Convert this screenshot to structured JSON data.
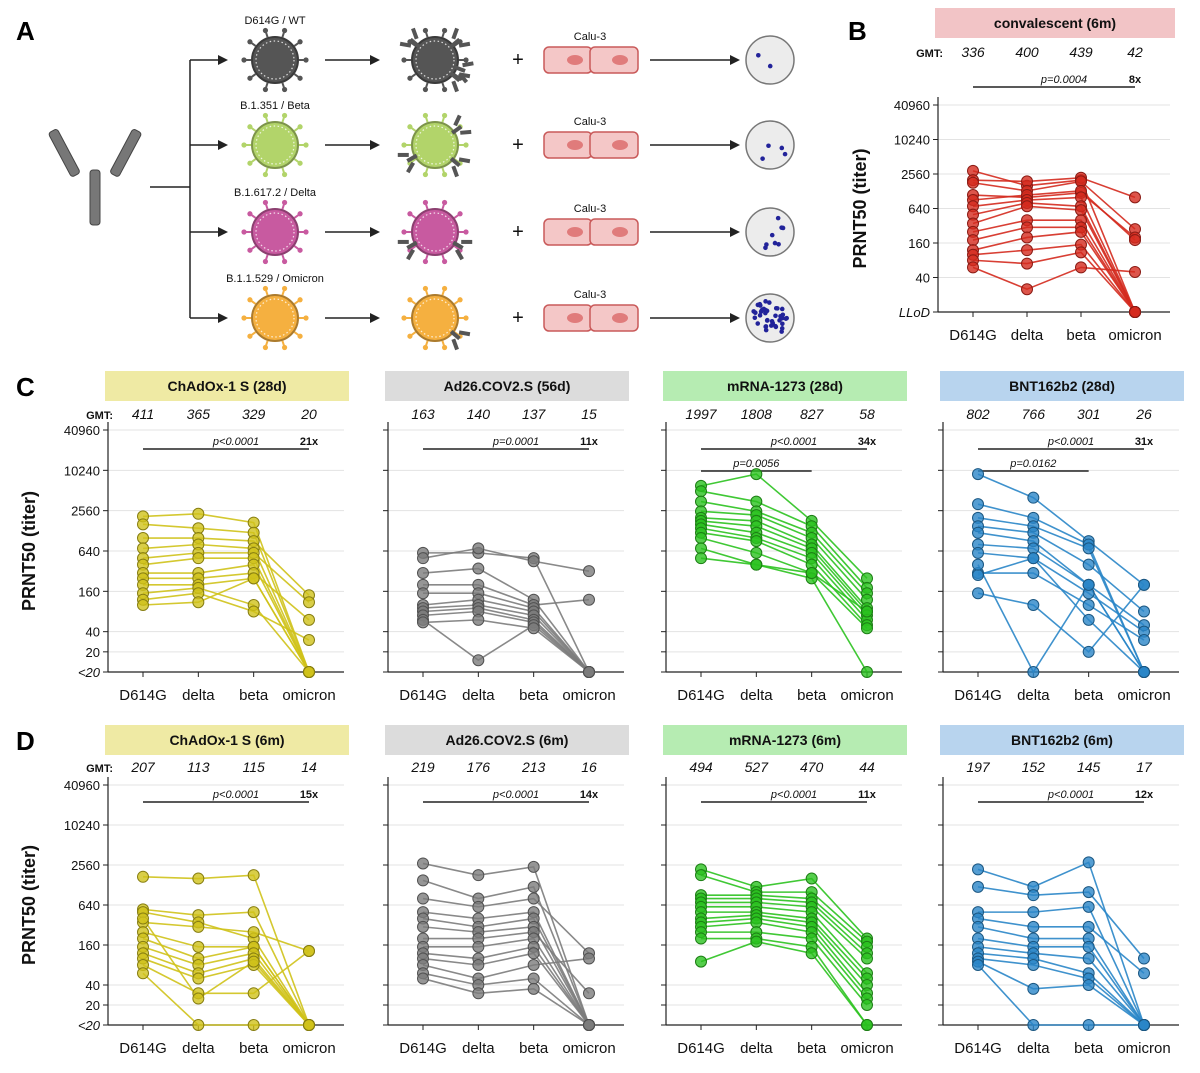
{
  "labels": {
    "A": "A",
    "B": "B",
    "C": "C",
    "D": "D"
  },
  "schematic": {
    "variants": [
      {
        "name": "D614G / WT",
        "color": "#555555",
        "antibodies": 4,
        "dots": 2
      },
      {
        "name": "B.1.351 / Beta",
        "color": "#b2d46a",
        "antibodies": 3,
        "dots": 4
      },
      {
        "name": "B.1.617.2 / Delta",
        "color": "#c85aa0",
        "antibodies": 2,
        "dots": 8
      },
      {
        "name": "B.1.1.529 / Omicron",
        "color": "#f5b040",
        "antibodies": 1,
        "dots": 40
      }
    ],
    "cell_label": "Calu-3",
    "plus": "+"
  },
  "common": {
    "categories": [
      "D614G",
      "delta",
      "beta",
      "omicron"
    ],
    "ylabel": "PRNT50 (titer)",
    "yticks": [
      "40960",
      "10240",
      "2560",
      "640",
      "160",
      "40",
      "20",
      "<20"
    ],
    "yticks_b": [
      "40960",
      "10240",
      "2560",
      "640",
      "160",
      "40",
      "LLoD"
    ],
    "gmt_label": "GMT:"
  },
  "chart_data": [
    {
      "panel": "B",
      "type": "line",
      "title": "convalescent (6m)",
      "title_bg": "#f2c4c6",
      "color": "#d42a1e",
      "gmt": [
        "336",
        "400",
        "439",
        "42"
      ],
      "sig": [
        {
          "from": 0,
          "to": 3,
          "p": "p=0.0004",
          "fold": "8x"
        }
      ],
      "series": [
        [
          2900,
          1600,
          2000,
          10
        ],
        [
          2000,
          1900,
          2200,
          1000
        ],
        [
          1800,
          1300,
          1900,
          280
        ],
        [
          1100,
          1000,
          1200,
          200
        ],
        [
          900,
          1100,
          1300,
          180
        ],
        [
          700,
          900,
          1000,
          10
        ],
        [
          500,
          800,
          700,
          10
        ],
        [
          350,
          700,
          600,
          10
        ],
        [
          250,
          400,
          400,
          10
        ],
        [
          180,
          300,
          300,
          10
        ],
        [
          120,
          200,
          250,
          10
        ],
        [
          100,
          120,
          150,
          10
        ],
        [
          80,
          70,
          110,
          10
        ],
        [
          60,
          25,
          60,
          50
        ]
      ]
    },
    {
      "panel": "C1",
      "type": "line",
      "title": "ChAdOx-1 S (28d)",
      "title_bg": "#efeaa4",
      "color": "#cfc21a",
      "gmt": [
        "411",
        "365",
        "329",
        "20"
      ],
      "sig": [
        {
          "from": 0,
          "to": 3,
          "p": "p<0.0001",
          "fold": "21x"
        }
      ],
      "series": [
        [
          2100,
          2300,
          1700,
          10
        ],
        [
          1600,
          1400,
          1200,
          10
        ],
        [
          1000,
          1000,
          900,
          140
        ],
        [
          700,
          800,
          700,
          10
        ],
        [
          500,
          600,
          600,
          110
        ],
        [
          400,
          500,
          500,
          10
        ],
        [
          300,
          300,
          400,
          10
        ],
        [
          250,
          250,
          300,
          60
        ],
        [
          200,
          200,
          250,
          10
        ],
        [
          150,
          180,
          100,
          10
        ],
        [
          120,
          150,
          80,
          30
        ],
        [
          100,
          110,
          250,
          10
        ]
      ]
    },
    {
      "panel": "C2",
      "type": "line",
      "title": "Ad26.COV2.S (56d)",
      "title_bg": "#dcdcdc",
      "color": "#7c7c7c",
      "gmt": [
        "163",
        "140",
        "137",
        "15"
      ],
      "sig": [
        {
          "from": 0,
          "to": 3,
          "p": "p=0.0001",
          "fold": "11x"
        }
      ],
      "series": [
        [
          600,
          600,
          500,
          10
        ],
        [
          500,
          700,
          450,
          320
        ],
        [
          300,
          350,
          120,
          10
        ],
        [
          200,
          200,
          100,
          120
        ],
        [
          150,
          150,
          90,
          10
        ],
        [
          100,
          120,
          80,
          10
        ],
        [
          90,
          100,
          70,
          10
        ],
        [
          80,
          90,
          60,
          10
        ],
        [
          70,
          80,
          55,
          10
        ],
        [
          60,
          15,
          50,
          10
        ],
        [
          55,
          60,
          45,
          10
        ]
      ]
    },
    {
      "panel": "C3",
      "type": "line",
      "title": "mRNA-1273 (28d)",
      "title_bg": "#b6ecb2",
      "color": "#2bc21f",
      "gmt": [
        "1997",
        "1808",
        "827",
        "58"
      ],
      "sig": [
        {
          "from": 0,
          "to": 3,
          "p": "p<0.0001",
          "fold": "34x"
        },
        {
          "from": 0,
          "to": 2,
          "p": "p=0.0056",
          "fold": ""
        }
      ],
      "series": [
        [
          6000,
          9000,
          1800,
          250
        ],
        [
          5000,
          3500,
          1500,
          180
        ],
        [
          3500,
          2500,
          1200,
          150
        ],
        [
          2500,
          2200,
          1000,
          120
        ],
        [
          2000,
          1800,
          800,
          90
        ],
        [
          1800,
          1500,
          700,
          80
        ],
        [
          1600,
          1200,
          600,
          70
        ],
        [
          1400,
          1000,
          500,
          60
        ],
        [
          1200,
          900,
          400,
          50
        ],
        [
          1000,
          600,
          300,
          45
        ],
        [
          700,
          400,
          250,
          10
        ],
        [
          500,
          400,
          300,
          80
        ]
      ]
    },
    {
      "panel": "C4",
      "type": "line",
      "title": "BNT162b2 (28d)",
      "title_bg": "#b8d4ee",
      "color": "#2a86c8",
      "gmt": [
        "802",
        "766",
        "301",
        "26"
      ],
      "sig": [
        {
          "from": 0,
          "to": 3,
          "p": "p<0.0001",
          "fold": "31x"
        },
        {
          "from": 0,
          "to": 2,
          "p": "p=0.0162",
          "fold": ""
        }
      ],
      "series": [
        [
          9000,
          4000,
          900,
          200
        ],
        [
          3200,
          2000,
          800,
          10
        ],
        [
          2000,
          1500,
          700,
          10
        ],
        [
          1500,
          1200,
          400,
          80
        ],
        [
          1200,
          900,
          200,
          50
        ],
        [
          800,
          700,
          200,
          10
        ],
        [
          600,
          500,
          150,
          40
        ],
        [
          300,
          300,
          100,
          30
        ],
        [
          280,
          500,
          60,
          10
        ],
        [
          150,
          100,
          20,
          200
        ],
        [
          400,
          10,
          200,
          10
        ]
      ]
    },
    {
      "panel": "D1",
      "type": "line",
      "title": "ChAdOx-1 S (6m)",
      "title_bg": "#efeaa4",
      "color": "#cfc21a",
      "gmt": [
        "207",
        "113",
        "115",
        "14"
      ],
      "sig": [
        {
          "from": 0,
          "to": 3,
          "p": "p<0.0001",
          "fold": "15x"
        }
      ],
      "series": [
        [
          1700,
          1600,
          1800,
          10
        ],
        [
          550,
          450,
          500,
          10
        ],
        [
          500,
          350,
          200,
          10
        ],
        [
          350,
          300,
          250,
          130
        ],
        [
          250,
          150,
          150,
          10
        ],
        [
          200,
          100,
          150,
          10
        ],
        [
          150,
          80,
          120,
          10
        ],
        [
          120,
          60,
          100,
          10
        ],
        [
          100,
          50,
          80,
          10
        ],
        [
          80,
          30,
          30,
          130
        ],
        [
          60,
          10,
          10,
          10
        ],
        [
          400,
          25,
          90,
          10
        ]
      ]
    },
    {
      "panel": "D2",
      "type": "line",
      "title": "Ad26.COV2.S (6m)",
      "title_bg": "#dcdcdc",
      "color": "#7c7c7c",
      "gmt": [
        "219",
        "176",
        "213",
        "16"
      ],
      "sig": [
        {
          "from": 0,
          "to": 3,
          "p": "p<0.0001",
          "fold": "14x"
        }
      ],
      "series": [
        [
          2700,
          1800,
          2400,
          10
        ],
        [
          1500,
          800,
          1200,
          10
        ],
        [
          800,
          600,
          800,
          120
        ],
        [
          500,
          400,
          500,
          10
        ],
        [
          400,
          300,
          400,
          10
        ],
        [
          300,
          250,
          300,
          10
        ],
        [
          200,
          200,
          250,
          30
        ],
        [
          150,
          150,
          200,
          10
        ],
        [
          120,
          100,
          150,
          10
        ],
        [
          100,
          80,
          120,
          10
        ],
        [
          80,
          50,
          80,
          100
        ],
        [
          60,
          40,
          50,
          10
        ],
        [
          50,
          30,
          35,
          10
        ]
      ]
    },
    {
      "panel": "D3",
      "type": "line",
      "title": "mRNA-1273 (6m)",
      "title_bg": "#b6ecb2",
      "color": "#2bc21f",
      "gmt": [
        "494",
        "527",
        "470",
        "44"
      ],
      "sig": [
        {
          "from": 0,
          "to": 3,
          "p": "p<0.0001",
          "fold": "11x"
        }
      ],
      "series": [
        [
          2200,
          1200,
          1600,
          200
        ],
        [
          1800,
          1000,
          1000,
          180
        ],
        [
          900,
          900,
          800,
          150
        ],
        [
          800,
          800,
          700,
          120
        ],
        [
          700,
          700,
          600,
          100
        ],
        [
          600,
          600,
          500,
          60
        ],
        [
          500,
          500,
          400,
          50
        ],
        [
          400,
          450,
          350,
          40
        ],
        [
          350,
          400,
          300,
          30
        ],
        [
          300,
          350,
          250,
          25
        ],
        [
          250,
          250,
          200,
          20
        ],
        [
          200,
          200,
          150,
          10
        ],
        [
          90,
          180,
          120,
          10
        ]
      ]
    },
    {
      "panel": "D4",
      "type": "line",
      "title": "BNT162b2 (6m)",
      "title_bg": "#b8d4ee",
      "color": "#2a86c8",
      "gmt": [
        "197",
        "152",
        "145",
        "17"
      ],
      "sig": [
        {
          "from": 0,
          "to": 3,
          "p": "p<0.0001",
          "fold": "12x"
        }
      ],
      "series": [
        [
          2200,
          1200,
          2800,
          10
        ],
        [
          1200,
          900,
          1000,
          100
        ],
        [
          500,
          500,
          600,
          10
        ],
        [
          400,
          300,
          300,
          60
        ],
        [
          300,
          200,
          200,
          10
        ],
        [
          200,
          150,
          150,
          10
        ],
        [
          150,
          120,
          100,
          10
        ],
        [
          120,
          100,
          60,
          10
        ],
        [
          100,
          80,
          50,
          10
        ],
        [
          90,
          35,
          40,
          10
        ],
        [
          80,
          10,
          10,
          10
        ]
      ]
    }
  ]
}
